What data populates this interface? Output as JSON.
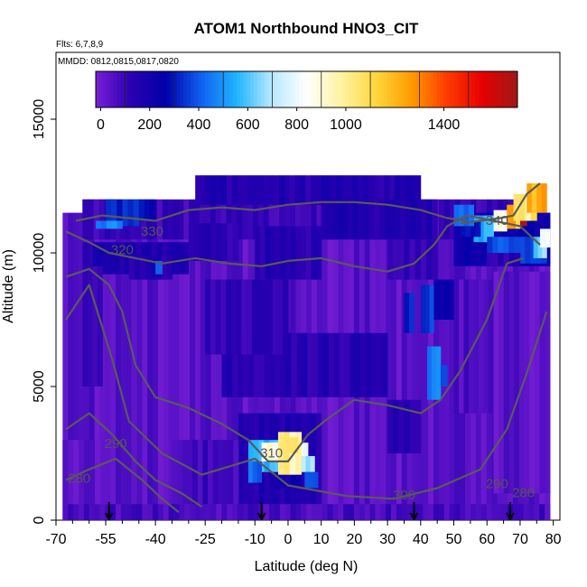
{
  "chart_data": {
    "type": "heatmap",
    "title": "ATOM1 Northbound HNO3_CIT",
    "notes": [
      "Flts: 6,7,8,9",
      "MMDD: 0812,0815,0817,0820"
    ],
    "xlabel": "Latitude (deg N)",
    "ylabel": "Altitude (m)",
    "xlim": [
      -70,
      82
    ],
    "ylim": [
      0,
      17500
    ],
    "x_ticks": [
      -70,
      -55,
      -40,
      -25,
      -10,
      0,
      10,
      20,
      30,
      40,
      50,
      60,
      70,
      80
    ],
    "x_tick_labels": [
      "-70",
      "-55",
      "-40",
      "-25",
      "-10",
      "0",
      "10",
      "20",
      "30",
      "40",
      "50",
      "60",
      "70",
      "80"
    ],
    "y_ticks": [
      0,
      5000,
      10000,
      15000
    ],
    "y_tick_labels": [
      "0",
      "5000",
      "10000",
      "15000"
    ],
    "colorbar": {
      "range": [
        -20,
        1700
      ],
      "ticks": [
        0,
        200,
        400,
        600,
        800,
        1000,
        1400
      ],
      "tick_labels": [
        "0",
        "200",
        "400",
        "600",
        "800",
        "1000",
        "1400"
      ],
      "colors": [
        "#7a1fd6",
        "#2a00b0",
        "#0000aa",
        "#1060f0",
        "#1eb4ff",
        "#b8e8ff",
        "#ffffff",
        "#fff2a0",
        "#ffd63a",
        "#ff9a00",
        "#ff3a00",
        "#e60000",
        "#a01818"
      ]
    },
    "grid": false,
    "legend": "top",
    "contours": [
      {
        "label": "280",
        "points": [
          [
            -67,
            1500
          ],
          [
            -60,
            1900
          ],
          [
            -52,
            2300
          ],
          [
            -44,
            1500
          ],
          [
            -38,
            800
          ],
          [
            -33,
            300
          ]
        ]
      },
      {
        "label": "290",
        "points": [
          [
            -67,
            3400
          ],
          [
            -60,
            4000
          ],
          [
            -53,
            3200
          ],
          [
            -46,
            2200
          ],
          [
            -40,
            1500
          ],
          [
            -32,
            1000
          ],
          [
            -26,
            500
          ]
        ]
      },
      {
        "label": "300",
        "points": [
          [
            -67,
            7500
          ],
          [
            -60,
            8800
          ],
          [
            -53,
            6000
          ],
          [
            -48,
            3700
          ],
          [
            -38,
            2500
          ],
          [
            -26,
            1700
          ],
          [
            -10,
            2300
          ],
          [
            0,
            1300
          ],
          [
            18,
            900
          ],
          [
            32,
            800
          ],
          [
            45,
            1200
          ],
          [
            58,
            1900
          ],
          [
            66,
            3400
          ],
          [
            72,
            5500
          ],
          [
            78,
            7800
          ]
        ]
      },
      {
        "label": "310",
        "points": [
          [
            -67,
            9100
          ],
          [
            -60,
            9400
          ],
          [
            -54,
            8800
          ],
          [
            -50,
            7800
          ],
          [
            -46,
            5800
          ],
          [
            -40,
            4600
          ],
          [
            -30,
            4200
          ],
          [
            -20,
            3600
          ],
          [
            -12,
            3000
          ],
          [
            -6,
            2200
          ],
          [
            0,
            2200
          ],
          [
            6,
            3200
          ],
          [
            12,
            3800
          ],
          [
            20,
            4500
          ],
          [
            30,
            4300
          ],
          [
            40,
            4000
          ],
          [
            46,
            4500
          ],
          [
            52,
            5600
          ],
          [
            60,
            7500
          ],
          [
            66,
            9600
          ],
          [
            71,
            9800
          ]
        ]
      },
      {
        "label": "320",
        "points": [
          [
            -67,
            10800
          ],
          [
            -60,
            10400
          ],
          [
            -54,
            10000
          ],
          [
            -46,
            9800
          ],
          [
            -38,
            9600
          ],
          [
            -28,
            9800
          ],
          [
            -18,
            9600
          ],
          [
            -8,
            9500
          ],
          [
            0,
            9700
          ],
          [
            10,
            9800
          ],
          [
            20,
            9500
          ],
          [
            30,
            9300
          ],
          [
            38,
            9600
          ],
          [
            44,
            10300
          ],
          [
            48,
            11000
          ],
          [
            54,
            11400
          ],
          [
            62,
            11200
          ],
          [
            70,
            11000
          ],
          [
            76,
            10300
          ]
        ]
      },
      {
        "label": "330",
        "points": [
          [
            -64,
            11200
          ],
          [
            -56,
            11400
          ],
          [
            -48,
            11300
          ],
          [
            -40,
            11200
          ],
          [
            -30,
            11600
          ],
          [
            -20,
            11700
          ],
          [
            -10,
            11600
          ],
          [
            0,
            11800
          ],
          [
            10,
            11900
          ],
          [
            20,
            11900
          ],
          [
            30,
            11800
          ],
          [
            40,
            11600
          ],
          [
            48,
            11300
          ],
          [
            54,
            11200
          ]
        ]
      },
      {
        "label": "340",
        "points": [
          [
            52,
            11100
          ],
          [
            58,
            11200
          ],
          [
            64,
            11300
          ],
          [
            68,
            11400
          ],
          [
            72,
            12200
          ],
          [
            76,
            12600
          ]
        ]
      }
    ],
    "contour_labels": [
      {
        "text": "330",
        "x": -41,
        "y": 10650
      },
      {
        "text": "320",
        "x": -50,
        "y": 9950
      },
      {
        "text": "340",
        "x": 63,
        "y": 11050
      },
      {
        "text": "310",
        "x": -5,
        "y": 2350
      },
      {
        "text": "300",
        "x": 35,
        "y": 780
      },
      {
        "text": "290",
        "x": 63,
        "y": 1200
      },
      {
        "text": "280",
        "x": 71,
        "y": 860
      },
      {
        "text": "290",
        "x": -52,
        "y": 2700
      },
      {
        "text": "280",
        "x": -63,
        "y": 1400
      }
    ],
    "flight_markers": [
      -54,
      -8,
      38,
      67
    ],
    "blocks": [
      {
        "x": [
          -68,
          79
        ],
        "y": [
          0,
          11500
        ],
        "v": 40
      },
      {
        "x": [
          -62,
          76
        ],
        "y": [
          10500,
          12000
        ],
        "v": 90
      },
      {
        "x": [
          -28,
          40
        ],
        "y": [
          11800,
          12900
        ],
        "v": 150
      },
      {
        "x": [
          -62,
          -52
        ],
        "y": [
          10500,
          12000
        ],
        "v": 100
      },
      {
        "x": [
          -55,
          -45
        ],
        "y": [
          11000,
          12000
        ],
        "v": 320
      },
      {
        "x": [
          -45,
          -40
        ],
        "y": [
          11200,
          12000
        ],
        "v": 260
      },
      {
        "x": [
          -62,
          -30
        ],
        "y": [
          9200,
          10400
        ],
        "v": 160
      },
      {
        "x": [
          -62,
          -56
        ],
        "y": [
          5000,
          9500
        ],
        "v": 110
      },
      {
        "x": [
          -48,
          -35
        ],
        "y": [
          9000,
          9900
        ],
        "v": 150
      },
      {
        "x": [
          -40,
          -38
        ],
        "y": [
          9200,
          9700
        ],
        "v": 430
      },
      {
        "x": [
          -30,
          -15
        ],
        "y": [
          9700,
          11100
        ],
        "v": 130
      },
      {
        "x": [
          -10,
          10
        ],
        "y": [
          9000,
          11000
        ],
        "v": 140
      },
      {
        "x": [
          10,
          45
        ],
        "y": [
          10500,
          12000
        ],
        "v": 150
      },
      {
        "x": [
          30,
          45
        ],
        "y": [
          9000,
          10500
        ],
        "v": 100
      },
      {
        "x": [
          40,
          44
        ],
        "y": [
          7000,
          8800
        ],
        "v": 350
      },
      {
        "x": [
          35,
          38
        ],
        "y": [
          7000,
          8500
        ],
        "v": 320
      },
      {
        "x": [
          42,
          46
        ],
        "y": [
          4500,
          6500
        ],
        "v": 450
      },
      {
        "x": [
          46,
          48
        ],
        "y": [
          5000,
          5800
        ],
        "v": 380
      },
      {
        "x": [
          -20,
          30
        ],
        "y": [
          4600,
          7000
        ],
        "v": 140
      },
      {
        "x": [
          -25,
          0
        ],
        "y": [
          6200,
          9000
        ],
        "v": 110
      },
      {
        "x": [
          30,
          40
        ],
        "y": [
          2500,
          4500
        ],
        "v": 140
      },
      {
        "x": [
          44,
          50
        ],
        "y": [
          7500,
          9000
        ],
        "v": 200
      },
      {
        "x": [
          50,
          62
        ],
        "y": [
          4000,
          9000
        ],
        "v": 60
      },
      {
        "x": [
          62,
          79
        ],
        "y": [
          1000,
          9300
        ],
        "v": 40
      },
      {
        "x": [
          -15,
          10
        ],
        "y": [
          600,
          4000
        ],
        "v": 160
      },
      {
        "x": [
          -4,
          4
        ],
        "y": [
          1200,
          3000
        ],
        "v": 220
      },
      {
        "x": [
          -12,
          4
        ],
        "y": [
          1800,
          3000
        ],
        "v": 550
      },
      {
        "x": [
          -8,
          6
        ],
        "y": [
          2200,
          2900
        ],
        "v": 850
      },
      {
        "x": [
          -3,
          4
        ],
        "y": [
          1700,
          3300
        ],
        "v": 960
      },
      {
        "x": [
          -2,
          3
        ],
        "y": [
          2500,
          3100
        ],
        "v": 1050
      },
      {
        "x": [
          4,
          8
        ],
        "y": [
          1800,
          2400
        ],
        "v": 700
      },
      {
        "x": [
          -12,
          -8
        ],
        "y": [
          1400,
          2200
        ],
        "v": 420
      },
      {
        "x": [
          5,
          9
        ],
        "y": [
          1200,
          1800
        ],
        "v": 400
      },
      {
        "x": [
          -35,
          -15
        ],
        "y": [
          600,
          3000
        ],
        "v": 90
      },
      {
        "x": [
          -68,
          79
        ],
        "y": [
          0,
          600
        ],
        "v": 70
      },
      {
        "x": [
          -68,
          -55
        ],
        "y": [
          600,
          3000
        ],
        "v": 30
      },
      {
        "x": [
          50,
          79
        ],
        "y": [
          9500,
          11500
        ],
        "v": 240
      },
      {
        "x": [
          56,
          62
        ],
        "y": [
          10400,
          11400
        ],
        "v": 560
      },
      {
        "x": [
          62,
          66
        ],
        "y": [
          10800,
          11600
        ],
        "v": 850
      },
      {
        "x": [
          66,
          70
        ],
        "y": [
          10900,
          11800
        ],
        "v": 1200
      },
      {
        "x": [
          70,
          72
        ],
        "y": [
          11000,
          11700
        ],
        "v": 1550
      },
      {
        "x": [
          68,
          75
        ],
        "y": [
          11200,
          12200
        ],
        "v": 1000
      },
      {
        "x": [
          72,
          78
        ],
        "y": [
          11500,
          12600
        ],
        "v": 1200
      },
      {
        "x": [
          52,
          58
        ],
        "y": [
          10600,
          11200
        ],
        "v": 300
      },
      {
        "x": [
          50,
          56
        ],
        "y": [
          11000,
          11800
        ],
        "v": 420
      },
      {
        "x": [
          60,
          78
        ],
        "y": [
          9600,
          10600
        ],
        "v": 380
      },
      {
        "x": [
          74,
          78
        ],
        "y": [
          9800,
          10600
        ],
        "v": 620
      },
      {
        "x": [
          76,
          79
        ],
        "y": [
          10200,
          10900
        ],
        "v": 800
      },
      {
        "x": [
          60,
          70
        ],
        "y": [
          9500,
          10000
        ],
        "v": 140
      },
      {
        "x": [
          -58,
          -50
        ],
        "y": [
          10900,
          11200
        ],
        "v": 460
      }
    ],
    "seed": 20240812
  }
}
